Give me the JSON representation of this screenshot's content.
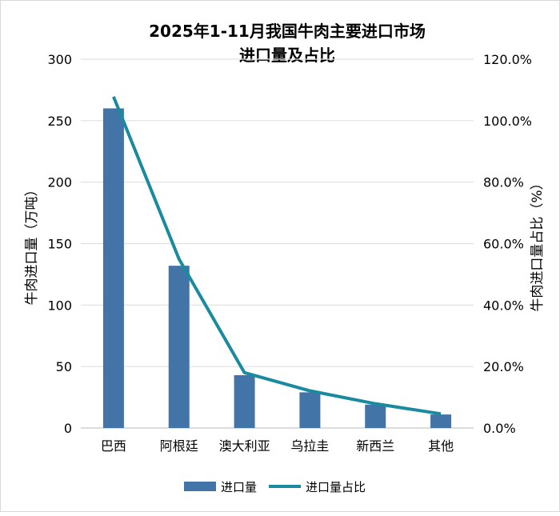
{
  "chart_data": {
    "type": "bar+line",
    "title": "2025年1-11月我国牛肉主要进口市场进口量及占比",
    "title_lines": [
      "2025年1-11月我国牛肉主要进口市场",
      "进口量及占比"
    ],
    "categories": [
      "巴西",
      "阿根廷",
      "澳大利亚",
      "乌拉圭",
      "新西兰",
      "其他"
    ],
    "series": [
      {
        "name": "进口量",
        "type": "bar",
        "axis": "left",
        "color": "#4374a8",
        "values": [
          260,
          132,
          43,
          29,
          19,
          11
        ]
      },
      {
        "name": "进口量占比",
        "type": "line",
        "axis": "right",
        "color": "#1a8a9e",
        "values": [
          107.8,
          55.0,
          18.0,
          12.1,
          7.9,
          4.6
        ]
      }
    ],
    "ylabel": "牛肉进口量（万吨）",
    "y2label": "牛肉进口量占比（%）",
    "ylim": [
      0,
      300
    ],
    "y2lim": [
      0,
      120
    ],
    "yticks": [
      "0",
      "50",
      "100",
      "150",
      "200",
      "250",
      "300"
    ],
    "y2ticks": [
      "0.0%",
      "20.0%",
      "40.0%",
      "60.0%",
      "80.0%",
      "100.0%",
      "120.0%"
    ],
    "grid": true,
    "legend": "bottom"
  }
}
